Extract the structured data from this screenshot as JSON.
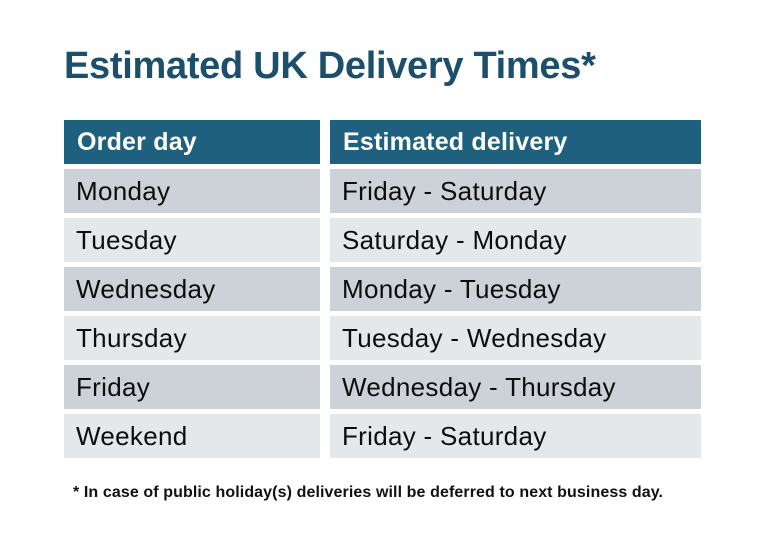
{
  "page": {
    "title": "Estimated UK Delivery Times*",
    "footnote": "* In case of public holiday(s) deliveries will be deferred to next business day."
  },
  "table": {
    "columns": [
      "Order day",
      "Estimated delivery"
    ],
    "rows": [
      {
        "order_day": "Monday",
        "estimated_delivery": "Friday - Saturday"
      },
      {
        "order_day": "Tuesday",
        "estimated_delivery": "Saturday - Monday"
      },
      {
        "order_day": "Wednesday",
        "estimated_delivery": "Monday - Tuesday"
      },
      {
        "order_day": "Thursday",
        "estimated_delivery": "Tuesday - Wednesday"
      },
      {
        "order_day": "Friday",
        "estimated_delivery": "Wednesday - Thursday"
      },
      {
        "order_day": "Weekend",
        "estimated_delivery": "Friday - Saturday"
      }
    ]
  },
  "colors": {
    "header_bg": "#20607F",
    "header_text": "#FFFFFF",
    "row_dark_bg": "#CDD2D8",
    "row_light_bg": "#E5E8EB",
    "title_text": "#1C4F6B",
    "body_text": "#0D0D0D",
    "page_bg": "#FFFFFF"
  }
}
